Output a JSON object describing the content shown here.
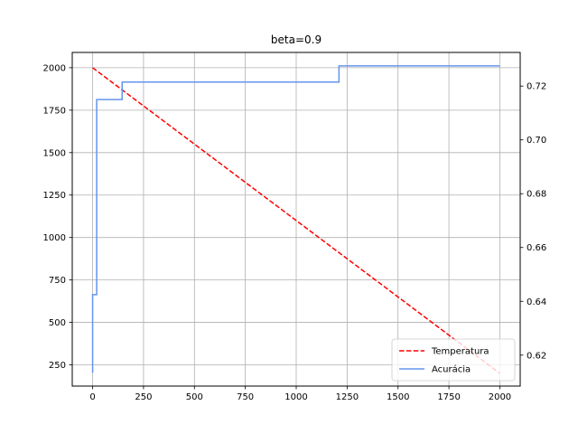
{
  "chart_data": {
    "type": "line",
    "title": "beta=0.9",
    "xlabel": "",
    "ylabel_left": "",
    "ylabel_right": "",
    "xlim": [
      -100,
      2100
    ],
    "ylim_left": [
      125,
      2090
    ],
    "ylim_right": [
      0.6085,
      0.7325
    ],
    "x_ticks": [
      0,
      250,
      500,
      750,
      1000,
      1250,
      1500,
      1750,
      2000
    ],
    "y_left_ticks": [
      250,
      500,
      750,
      1000,
      1250,
      1500,
      1750,
      2000
    ],
    "y_right_ticks": [
      0.62,
      0.64,
      0.66,
      0.68,
      0.7,
      0.72
    ],
    "grid": true,
    "legend_position": "lower-right",
    "series": [
      {
        "name": "Temperatura",
        "axis": "left",
        "color": "#ff0000",
        "style": "dashed",
        "x": [
          0,
          2000
        ],
        "y": [
          2000,
          200
        ]
      },
      {
        "name": "Acurácia",
        "axis": "right",
        "color": "#6495ed",
        "style": "solid",
        "step": true,
        "x": [
          0,
          0,
          15,
          15,
          20,
          20,
          145,
          145,
          1210,
          1210,
          2000
        ],
        "y": [
          0.6135,
          0.6425,
          0.6425,
          0.6425,
          0.6425,
          0.715,
          0.715,
          0.7215,
          0.7215,
          0.7275,
          0.7275
        ]
      }
    ]
  }
}
